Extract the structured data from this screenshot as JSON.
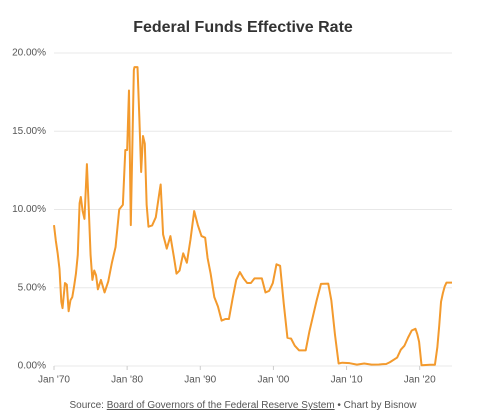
{
  "chart_data": {
    "type": "line",
    "title": "Federal Funds Effective Rate",
    "source_label": "Source:",
    "source_name": "Board of Governors of the Federal Reserve System",
    "credit": "• Chart by Bisnow",
    "xlim": [
      "1970-01",
      "2024-06"
    ],
    "xticks": [
      {
        "value": "1970-01",
        "label": "Jan '70"
      },
      {
        "value": "1980-01",
        "label": "Jan '80"
      },
      {
        "value": "1990-01",
        "label": "Jan '90"
      },
      {
        "value": "2000-01",
        "label": "Jan '00"
      },
      {
        "value": "2010-01",
        "label": "Jan '10"
      },
      {
        "value": "2020-01",
        "label": "Jan '20"
      }
    ],
    "ylim": [
      0,
      20
    ],
    "yticks": [
      {
        "value": 0,
        "label": "0.00%"
      },
      {
        "value": 5,
        "label": "5.00%"
      },
      {
        "value": 10,
        "label": "10.00%"
      },
      {
        "value": 15,
        "label": "15.00%"
      },
      {
        "value": 20,
        "label": "20.00%"
      }
    ],
    "grid": true,
    "series": [
      {
        "color": "#f39a2d",
        "x": [
          "1970-01",
          "1970-04",
          "1970-07",
          "1970-10",
          "1971-01",
          "1971-03",
          "1971-07",
          "1971-10",
          "1972-01",
          "1972-04",
          "1972-07",
          "1972-10",
          "1973-01",
          "1973-04",
          "1973-07",
          "1973-09",
          "1973-12",
          "1974-03",
          "1974-07",
          "1974-10",
          "1975-01",
          "1975-04",
          "1975-07",
          "1975-10",
          "1976-01",
          "1976-06",
          "1976-12",
          "1977-06",
          "1977-12",
          "1978-06",
          "1978-12",
          "1979-06",
          "1979-10",
          "1980-01",
          "1980-04",
          "1980-07",
          "1980-12",
          "1981-01",
          "1981-06",
          "1981-09",
          "1981-12",
          "1982-03",
          "1982-06",
          "1982-09",
          "1982-12",
          "1983-06",
          "1983-12",
          "1984-06",
          "1984-08",
          "1984-12",
          "1985-06",
          "1985-12",
          "1986-06",
          "1986-10",
          "1987-03",
          "1987-09",
          "1988-03",
          "1988-09",
          "1989-03",
          "1989-09",
          "1990-03",
          "1990-09",
          "1991-01",
          "1991-06",
          "1991-12",
          "1992-06",
          "1992-12",
          "1993-06",
          "1993-12",
          "1994-06",
          "1994-12",
          "1995-06",
          "1995-12",
          "1996-06",
          "1996-12",
          "1997-06",
          "1998-06",
          "1998-12",
          "1999-06",
          "1999-12",
          "2000-06",
          "2000-12",
          "2001-06",
          "2001-12",
          "2002-06",
          "2002-12",
          "2003-07",
          "2004-06",
          "2004-12",
          "2005-12",
          "2006-07",
          "2007-07",
          "2007-12",
          "2008-06",
          "2008-12",
          "2009-06",
          "2010-06",
          "2011-06",
          "2012-06",
          "2013-06",
          "2014-06",
          "2015-06",
          "2015-12",
          "2016-12",
          "2017-06",
          "2017-12",
          "2018-06",
          "2018-12",
          "2019-06",
          "2019-09",
          "2019-12",
          "2020-04",
          "2021-06",
          "2022-02",
          "2022-06",
          "2022-09",
          "2022-12",
          "2023-03",
          "2023-06",
          "2023-09",
          "2024-03",
          "2024-06"
        ],
        "values": [
          9.0,
          8.0,
          7.2,
          6.2,
          4.1,
          3.7,
          5.3,
          5.2,
          3.5,
          4.2,
          4.4,
          5.1,
          5.9,
          7.1,
          10.4,
          10.8,
          9.9,
          9.4,
          12.9,
          10.1,
          7.1,
          5.5,
          6.1,
          5.8,
          4.9,
          5.5,
          4.7,
          5.4,
          6.6,
          7.6,
          10.0,
          10.3,
          13.8,
          13.8,
          17.6,
          9.0,
          18.9,
          19.1,
          19.1,
          15.9,
          12.4,
          14.7,
          14.2,
          10.3,
          8.9,
          8.98,
          9.5,
          11.1,
          11.6,
          8.4,
          7.5,
          8.3,
          6.9,
          5.9,
          6.1,
          7.2,
          6.6,
          8.1,
          9.9,
          9.0,
          8.3,
          8.2,
          6.9,
          5.9,
          4.4,
          3.8,
          2.9,
          3.0,
          3.0,
          4.3,
          5.5,
          6.0,
          5.6,
          5.3,
          5.3,
          5.6,
          5.6,
          4.7,
          4.8,
          5.3,
          6.5,
          6.4,
          3.97,
          1.8,
          1.75,
          1.3,
          1.0,
          1.0,
          2.2,
          4.2,
          5.25,
          5.26,
          4.2,
          2.0,
          0.16,
          0.21,
          0.18,
          0.09,
          0.16,
          0.09,
          0.1,
          0.13,
          0.24,
          0.54,
          1.04,
          1.3,
          1.82,
          2.27,
          2.38,
          2.04,
          1.55,
          0.05,
          0.08,
          0.08,
          1.21,
          2.56,
          4.1,
          4.65,
          5.08,
          5.33,
          5.33,
          5.33
        ]
      }
    ]
  }
}
